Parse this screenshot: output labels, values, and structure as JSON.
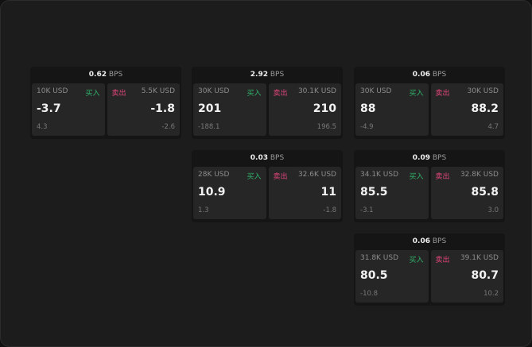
{
  "unit": "BPS",
  "buy_label": "买入",
  "sell_label": "卖出",
  "colors": {
    "buy": "#2fb36a",
    "sell": "#e0457b"
  },
  "cards": [
    {
      "spread": "0.62",
      "bid_size": "10K USD",
      "bid": "-3.7",
      "bid_change": "4.3",
      "ask_size": "5.5K USD",
      "ask": "-1.8",
      "ask_change": "-2.6"
    },
    {
      "spread": "2.92",
      "bid_size": "30K USD",
      "bid": "201",
      "bid_change": "-188.1",
      "ask_size": "30.1K USD",
      "ask": "210",
      "ask_change": "196.5"
    },
    {
      "spread": "0.06",
      "bid_size": "30K USD",
      "bid": "88",
      "bid_change": "-4.9",
      "ask_size": "30K USD",
      "ask": "88.2",
      "ask_change": "4.7"
    },
    {
      "spread": "0.03",
      "bid_size": "28K USD",
      "bid": "10.9",
      "bid_change": "1.3",
      "ask_size": "32.6K USD",
      "ask": "11",
      "ask_change": "-1.8"
    },
    {
      "spread": "0.09",
      "bid_size": "34.1K USD",
      "bid": "85.5",
      "bid_change": "-3.1",
      "ask_size": "32.8K USD",
      "ask": "85.8",
      "ask_change": "3.0"
    },
    {
      "spread": "0.06",
      "bid_size": "31.8K USD",
      "bid": "80.5",
      "bid_change": "-10.8",
      "ask_size": "39.1K USD",
      "ask": "80.7",
      "ask_change": "10.2"
    }
  ]
}
